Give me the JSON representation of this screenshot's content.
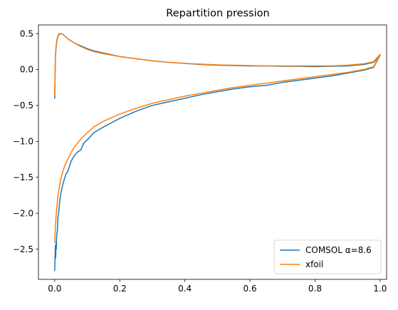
{
  "chart_data": {
    "type": "line",
    "title": "Repartition pression",
    "xlabel": "",
    "ylabel": "",
    "xlim": [
      -0.05,
      1.02
    ],
    "ylim": [
      -2.92,
      0.62
    ],
    "xticks": [
      0.0,
      0.2,
      0.4,
      0.6,
      0.8,
      1.0
    ],
    "xtick_labels": [
      "0.0",
      "0.2",
      "0.4",
      "0.6",
      "0.8",
      "1.0"
    ],
    "yticks": [
      0.5,
      0.0,
      -0.5,
      -1.0,
      -1.5,
      -2.0,
      -2.5
    ],
    "ytick_labels": [
      "0.5",
      "0.0",
      "−0.5",
      "−1.0",
      "−1.5",
      "−2.0",
      "−2.5"
    ],
    "grid": false,
    "legend": {
      "location": "lower-right",
      "entries": [
        "COMSOL α=8.6",
        "xfoil"
      ]
    },
    "series": [
      {
        "name": "COMSOL α=8.6",
        "color": "#1f77b4",
        "segments": [
          {
            "x": [
              0.0,
              0.002,
              0.004,
              0.006,
              0.008,
              0.01,
              0.012,
              0.015,
              0.02,
              0.025,
              0.03,
              0.035,
              0.04,
              0.05,
              0.06,
              0.08,
              0.1,
              0.12,
              0.15,
              0.2,
              0.25,
              0.3,
              0.35,
              0.4,
              0.45,
              0.5,
              0.55,
              0.6,
              0.65,
              0.7,
              0.75,
              0.8,
              0.85,
              0.9,
              0.95,
              0.98,
              1.0
            ],
            "y": [
              -0.4,
              0.15,
              0.3,
              0.38,
              0.43,
              0.46,
              0.48,
              0.49,
              0.5,
              0.49,
              0.47,
              0.45,
              0.43,
              0.4,
              0.37,
              0.33,
              0.29,
              0.26,
              0.23,
              0.18,
              0.15,
              0.12,
              0.1,
              0.085,
              0.07,
              0.06,
              0.055,
              0.05,
              0.05,
              0.045,
              0.045,
              0.04,
              0.045,
              0.05,
              0.07,
              0.1,
              0.2
            ]
          },
          {
            "x": [
              0.0,
              0.002,
              0.003,
              0.004,
              0.005,
              0.006,
              0.008,
              0.01,
              0.012,
              0.015,
              0.018,
              0.02,
              0.025,
              0.03,
              0.035,
              0.04,
              0.05,
              0.06,
              0.07,
              0.08,
              0.09,
              0.1,
              0.12,
              0.15,
              0.2,
              0.25,
              0.3,
              0.35,
              0.4,
              0.45,
              0.5,
              0.55,
              0.6,
              0.65,
              0.7,
              0.75,
              0.8,
              0.85,
              0.9,
              0.95,
              0.98,
              1.0
            ],
            "y": [
              -2.8,
              -2.45,
              -2.62,
              -2.4,
              -2.5,
              -2.3,
              -2.25,
              -2.05,
              -2.0,
              -1.85,
              -1.75,
              -1.7,
              -1.6,
              -1.52,
              -1.45,
              -1.42,
              -1.28,
              -1.2,
              -1.15,
              -1.12,
              -1.02,
              -0.98,
              -0.88,
              -0.8,
              -0.68,
              -0.58,
              -0.5,
              -0.45,
              -0.4,
              -0.35,
              -0.31,
              -0.27,
              -0.24,
              -0.22,
              -0.18,
              -0.15,
              -0.12,
              -0.09,
              -0.05,
              -0.01,
              0.03,
              0.2
            ]
          }
        ]
      },
      {
        "name": "xfoil",
        "color": "#ff7f0e",
        "segments": [
          {
            "x": [
              0.0,
              0.002,
              0.004,
              0.006,
              0.008,
              0.01,
              0.012,
              0.015,
              0.02,
              0.025,
              0.03,
              0.035,
              0.04,
              0.05,
              0.06,
              0.08,
              0.1,
              0.12,
              0.15,
              0.2,
              0.25,
              0.3,
              0.35,
              0.4,
              0.45,
              0.5,
              0.55,
              0.6,
              0.65,
              0.7,
              0.75,
              0.8,
              0.85,
              0.9,
              0.95,
              0.98,
              1.0
            ],
            "y": [
              -0.35,
              0.18,
              0.32,
              0.4,
              0.44,
              0.47,
              0.49,
              0.5,
              0.5,
              0.49,
              0.47,
              0.45,
              0.43,
              0.4,
              0.37,
              0.32,
              0.28,
              0.25,
              0.22,
              0.18,
              0.15,
              0.12,
              0.1,
              0.085,
              0.075,
              0.065,
              0.06,
              0.055,
              0.05,
              0.05,
              0.05,
              0.05,
              0.05,
              0.06,
              0.08,
              0.11,
              0.21
            ]
          },
          {
            "x": [
              0.0,
              0.002,
              0.004,
              0.006,
              0.008,
              0.01,
              0.015,
              0.02,
              0.025,
              0.03,
              0.04,
              0.05,
              0.06,
              0.08,
              0.1,
              0.12,
              0.15,
              0.2,
              0.25,
              0.3,
              0.35,
              0.4,
              0.45,
              0.5,
              0.55,
              0.6,
              0.65,
              0.7,
              0.75,
              0.8,
              0.85,
              0.9,
              0.95,
              0.98,
              1.0
            ],
            "y": [
              -2.4,
              -2.2,
              -2.05,
              -1.95,
              -1.85,
              -1.75,
              -1.62,
              -1.5,
              -1.42,
              -1.35,
              -1.25,
              -1.16,
              -1.08,
              -0.97,
              -0.88,
              -0.8,
              -0.72,
              -0.62,
              -0.54,
              -0.47,
              -0.42,
              -0.37,
              -0.33,
              -0.29,
              -0.25,
              -0.22,
              -0.19,
              -0.16,
              -0.13,
              -0.1,
              -0.07,
              -0.04,
              0.0,
              0.04,
              0.21
            ]
          }
        ]
      }
    ]
  }
}
